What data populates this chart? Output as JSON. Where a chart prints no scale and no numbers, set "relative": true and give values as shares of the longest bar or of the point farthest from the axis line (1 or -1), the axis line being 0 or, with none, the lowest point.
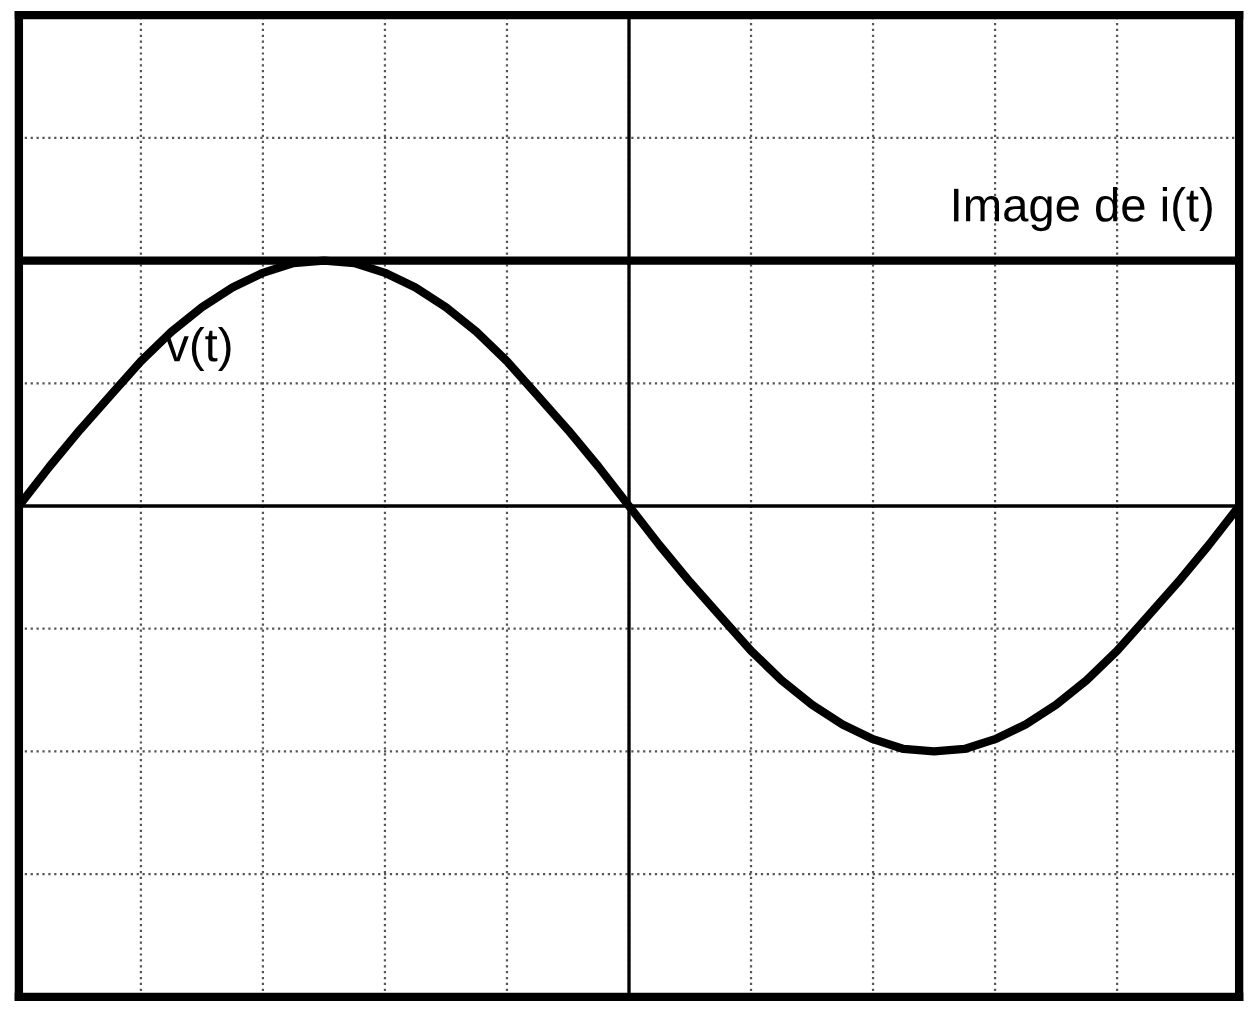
{
  "chart_data": {
    "type": "line",
    "relative": true,
    "grid": true,
    "tick_labels": false,
    "categories": [
      null,
      null,
      null,
      null,
      null,
      null,
      null,
      null,
      null,
      null,
      null,
      null,
      null,
      null,
      null,
      null,
      null,
      null,
      null,
      null,
      null,
      null,
      null,
      null,
      null,
      null,
      null,
      null,
      null,
      null,
      null,
      null,
      null,
      null,
      null,
      null,
      null,
      null,
      null,
      null,
      null
    ],
    "series": [
      {
        "name": "v(t)",
        "color": "#000000",
        "values": [
          0,
          0.16,
          0.31,
          0.45,
          0.59,
          0.71,
          0.81,
          0.89,
          0.95,
          0.99,
          1,
          0.99,
          0.95,
          0.89,
          0.81,
          0.71,
          0.59,
          0.45,
          0.31,
          0.16,
          0,
          -0.16,
          -0.31,
          -0.45,
          -0.59,
          -0.71,
          -0.81,
          -0.89,
          -0.95,
          -0.99,
          -1,
          -0.99,
          -0.95,
          -0.89,
          -0.81,
          -0.71,
          -0.59,
          -0.45,
          -0.31,
          -0.16,
          0
        ]
      },
      {
        "name": "Image de i(t)",
        "color": "#000000",
        "values": [
          1,
          1,
          1,
          1,
          1,
          1,
          1,
          1,
          1,
          1,
          1,
          1,
          1,
          1,
          1,
          1,
          1,
          1,
          1,
          1,
          1,
          1,
          1,
          1,
          1,
          1,
          1,
          1,
          1,
          1,
          1,
          1,
          1,
          1,
          1,
          1,
          1,
          1,
          1,
          1,
          1
        ]
      }
    ]
  }
}
